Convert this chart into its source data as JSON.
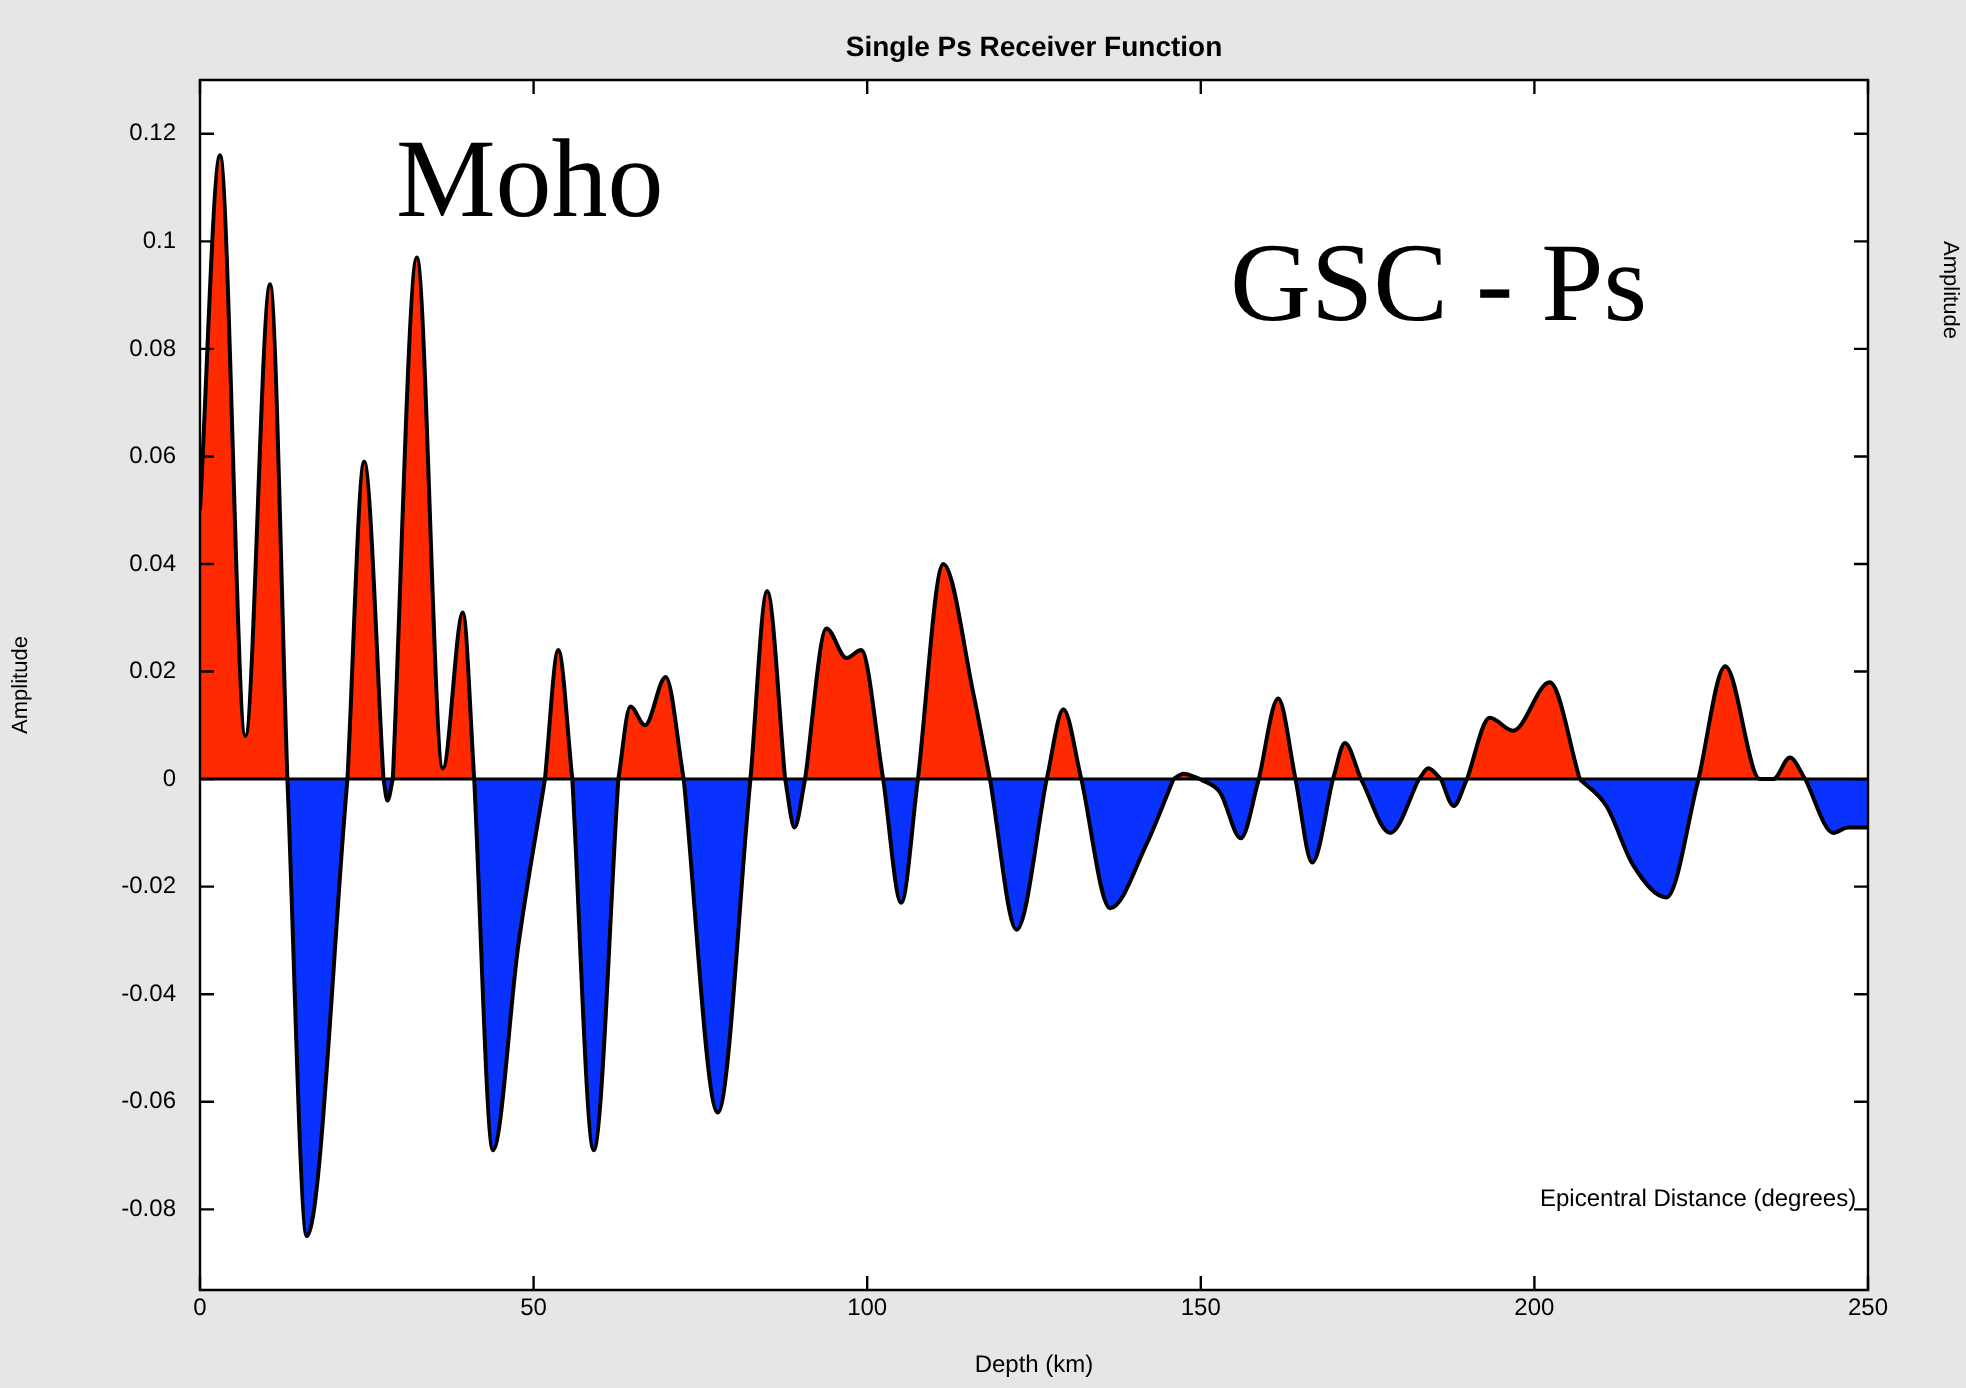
{
  "chart_data": {
    "type": "area",
    "title": "Single Ps Receiver Function",
    "xlabel": "Depth (km)",
    "ylabel": "Amplitude",
    "annotations": [
      "Moho",
      "GSC - Ps",
      "Amplitude",
      "Epicentral Distance (degrees)"
    ],
    "xlim": [
      0,
      250
    ],
    "xticks": [
      0,
      50,
      100,
      150,
      200,
      250
    ],
    "ylim": [
      -0.095,
      0.13
    ],
    "yticks": [
      -0.08,
      -0.06,
      -0.04,
      -0.02,
      0,
      0.02,
      0.04,
      0.06,
      0.08,
      0.1,
      0.12
    ],
    "grid": false,
    "legend": false,
    "marker": "none",
    "line_style": "solid",
    "ref_lines": [
      {
        "axis": "y",
        "value": 0,
        "color": "#000000"
      }
    ],
    "x": [
      0,
      3.0,
      6.8,
      10.5,
      13.1,
      16.0,
      22.1,
      24.6,
      27.5,
      28.1,
      28.9,
      32.5,
      36.4,
      39.4,
      41.1,
      43.9,
      47.7,
      51.7,
      53.7,
      55.8,
      59.0,
      62.7,
      64.5,
      66.7,
      69.8,
      72.5,
      77.6,
      82.5,
      85.0,
      87.7,
      89.1,
      90.7,
      93.9,
      96.9,
      99.1,
      102.4,
      105.1,
      107.6,
      111.4,
      115.9,
      118.4,
      122.4,
      126.9,
      129.4,
      132.1,
      136.4,
      141.9,
      145.9,
      147.4,
      149.9,
      152.9,
      156.0,
      158.7,
      161.6,
      164.2,
      166.7,
      169.8,
      171.6,
      174.0,
      178.4,
      182.7,
      184.1,
      186.0,
      187.9,
      189.9,
      193.3,
      196.8,
      202.3,
      206.8,
      210.8,
      214.8,
      219.8,
      224.6,
      228.6,
      233.8,
      235.0,
      235.8,
      238.3,
      240.6,
      244.8,
      247.0,
      250
    ],
    "series": [
      {
        "color": "#ff2a00",
        "values": [
          0.05,
          0.116,
          0.008,
          0.092,
          0,
          null,
          0,
          0.059,
          0,
          null,
          0,
          0.097,
          0.002,
          0.031,
          0,
          null,
          null,
          0,
          0.024,
          0,
          null,
          0,
          0.0135,
          0.01,
          0.019,
          0,
          null,
          0,
          0.035,
          0,
          null,
          0,
          0.028,
          0.0225,
          0.024,
          0,
          null,
          0,
          0.04,
          0.016,
          0,
          null,
          0,
          0.013,
          0,
          null,
          null,
          0,
          0.001,
          0,
          null,
          null,
          0,
          0.015,
          0,
          null,
          0,
          0.0067,
          0,
          null,
          0,
          0.002,
          0,
          null,
          0,
          0.0114,
          0.009,
          0.018,
          0,
          null,
          null,
          null,
          0,
          0.021,
          0,
          0,
          0,
          0.004,
          0,
          null,
          null,
          null
        ]
      },
      {
        "color": "#0a32ff",
        "values": [
          null,
          null,
          null,
          null,
          0,
          -0.085,
          0,
          null,
          0,
          -0.004,
          0,
          null,
          null,
          null,
          0,
          -0.069,
          -0.031,
          0,
          null,
          0,
          -0.069,
          0,
          null,
          null,
          null,
          0,
          -0.062,
          0,
          null,
          0,
          -0.009,
          0,
          null,
          null,
          null,
          0,
          -0.023,
          0,
          null,
          null,
          0,
          -0.028,
          0,
          null,
          0,
          -0.024,
          -0.012,
          0,
          null,
          0,
          -0.0025,
          -0.011,
          0,
          null,
          0,
          -0.0155,
          0,
          null,
          0,
          -0.01,
          0,
          null,
          0,
          -0.005,
          0,
          null,
          null,
          null,
          0,
          -0.005,
          -0.016,
          -0.022,
          0,
          null,
          null,
          null,
          null,
          null,
          0,
          -0.01,
          -0.009,
          -0.009
        ]
      }
    ]
  }
}
